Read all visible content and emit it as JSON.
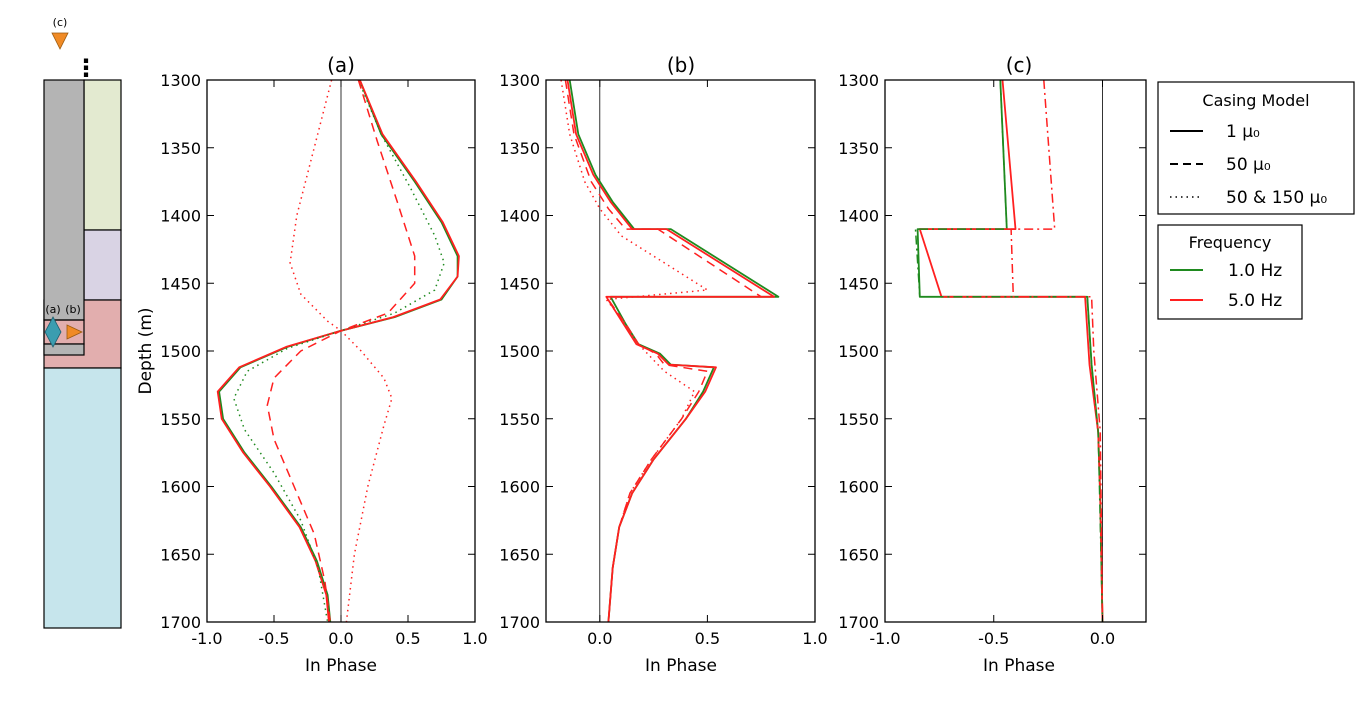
{
  "colors": {
    "green": "#1f8a1f",
    "red": "#ff2020",
    "layer_green": "#e3ead0",
    "layer_purple": "#d9d3e4",
    "layer_pink": "#e2aeae",
    "layer_blue": "#c6e5ec",
    "casing_gray": "#b4b4b4",
    "marker_orange": "#f08a25",
    "marker_teal": "#3b9db0"
  },
  "schematic": {
    "label_c": "(c)",
    "label_a": "(a)",
    "label_b": "(b)",
    "ellipsis": "⋮"
  },
  "legend_model": {
    "title": "Casing Model",
    "entries": [
      {
        "label": "1 μ₀",
        "style": "solid"
      },
      {
        "label": "50 μ₀",
        "style": "dashed"
      },
      {
        "label": "50 & 150 μ₀",
        "style": "dotted"
      }
    ]
  },
  "legend_freq": {
    "title": "Frequency",
    "entries": [
      {
        "label": "1.0 Hz",
        "color": "green"
      },
      {
        "label": "5.0 Hz",
        "color": "red"
      }
    ]
  },
  "chart_data": [
    {
      "type": "line",
      "title": "(a)",
      "xlabel": "In Phase",
      "ylabel": "Depth (m)",
      "xlim": [
        -1.0,
        1.0
      ],
      "ylim": [
        1700,
        1300
      ],
      "xticks": [
        -1.0,
        -0.5,
        0.0,
        0.5,
        1.0
      ],
      "xtick_labels": [
        "-1.0",
        "-0.5",
        "0.0",
        "0.5",
        "1.0"
      ],
      "yticks": [
        1300,
        1350,
        1400,
        1450,
        1500,
        1550,
        1600,
        1650,
        1700
      ],
      "zero_line": 0.0,
      "series": [
        {
          "name": "1 μ₀, 1.0 Hz",
          "color": "green",
          "style": "solid",
          "points": [
            [
              0.14,
              1300
            ],
            [
              0.3,
              1340
            ],
            [
              0.55,
              1375
            ],
            [
              0.75,
              1405
            ],
            [
              0.87,
              1430
            ],
            [
              0.87,
              1445
            ],
            [
              0.75,
              1462
            ],
            [
              0.4,
              1475
            ],
            [
              0.0,
              1485
            ],
            [
              -0.4,
              1497
            ],
            [
              -0.75,
              1512
            ],
            [
              -0.91,
              1530
            ],
            [
              -0.88,
              1550
            ],
            [
              -0.72,
              1575
            ],
            [
              -0.52,
              1600
            ],
            [
              -0.3,
              1630
            ],
            [
              -0.18,
              1655
            ],
            [
              -0.1,
              1680
            ],
            [
              -0.08,
              1700
            ]
          ]
        },
        {
          "name": "1 μ₀, 5.0 Hz",
          "color": "red",
          "style": "solid",
          "points": [
            [
              0.14,
              1300
            ],
            [
              0.31,
              1340
            ],
            [
              0.56,
              1375
            ],
            [
              0.76,
              1405
            ],
            [
              0.88,
              1430
            ],
            [
              0.87,
              1445
            ],
            [
              0.74,
              1462
            ],
            [
              0.39,
              1475
            ],
            [
              0.0,
              1485
            ],
            [
              -0.41,
              1497
            ],
            [
              -0.76,
              1512
            ],
            [
              -0.92,
              1530
            ],
            [
              -0.89,
              1550
            ],
            [
              -0.73,
              1575
            ],
            [
              -0.53,
              1600
            ],
            [
              -0.31,
              1630
            ],
            [
              -0.19,
              1655
            ],
            [
              -0.11,
              1680
            ],
            [
              -0.09,
              1700
            ]
          ]
        },
        {
          "name": "50 μ₀, 1.0 Hz",
          "color": "green",
          "style": "dotted",
          "points": [
            [
              0.13,
              1300
            ],
            [
              0.3,
              1340
            ],
            [
              0.52,
              1380
            ],
            [
              0.7,
              1415
            ],
            [
              0.77,
              1435
            ],
            [
              0.7,
              1455
            ],
            [
              0.4,
              1472
            ],
            [
              0.0,
              1485
            ],
            [
              -0.4,
              1498
            ],
            [
              -0.7,
              1515
            ],
            [
              -0.8,
              1535
            ],
            [
              -0.72,
              1558
            ],
            [
              -0.5,
              1590
            ],
            [
              -0.3,
              1625
            ],
            [
              -0.17,
              1660
            ],
            [
              -0.1,
              1700
            ]
          ]
        },
        {
          "name": "50 μ₀, 5.0 Hz",
          "color": "red",
          "style": "dashed",
          "points": [
            [
              0.13,
              1300
            ],
            [
              0.27,
              1345
            ],
            [
              0.42,
              1390
            ],
            [
              0.55,
              1430
            ],
            [
              0.55,
              1450
            ],
            [
              0.35,
              1472
            ],
            [
              0.0,
              1485
            ],
            [
              -0.3,
              1500
            ],
            [
              -0.5,
              1520
            ],
            [
              -0.55,
              1540
            ],
            [
              -0.5,
              1565
            ],
            [
              -0.35,
              1600
            ],
            [
              -0.2,
              1635
            ],
            [
              -0.12,
              1670
            ],
            [
              -0.08,
              1700
            ]
          ]
        },
        {
          "name": "50 & 150 μ₀, 5.0 Hz",
          "color": "red",
          "style": "dotted",
          "points": [
            [
              -0.07,
              1300
            ],
            [
              -0.2,
              1350
            ],
            [
              -0.33,
              1400
            ],
            [
              -0.38,
              1435
            ],
            [
              -0.3,
              1458
            ],
            [
              -0.1,
              1478
            ],
            [
              0.0,
              1485
            ],
            [
              0.15,
              1500
            ],
            [
              0.32,
              1520
            ],
            [
              0.38,
              1535
            ],
            [
              0.32,
              1555
            ],
            [
              0.2,
              1600
            ],
            [
              0.1,
              1650
            ],
            [
              0.04,
              1700
            ]
          ]
        }
      ]
    },
    {
      "type": "line",
      "title": "(b)",
      "xlabel": "In Phase",
      "ylabel": "",
      "xlim": [
        -0.25,
        1.0
      ],
      "ylim": [
        1700,
        1300
      ],
      "xticks": [
        0.0,
        0.5,
        1.0
      ],
      "xtick_labels": [
        "0.0",
        "0.5",
        "1.0"
      ],
      "yticks": [
        1300,
        1350,
        1400,
        1450,
        1500,
        1550,
        1600,
        1650,
        1700
      ],
      "zero_line": 0.0,
      "series": [
        {
          "name": "1 μ₀, 1.0 Hz",
          "color": "green",
          "style": "solid",
          "points": [
            [
              -0.14,
              1300
            ],
            [
              -0.1,
              1340
            ],
            [
              -0.02,
              1370
            ],
            [
              0.06,
              1390
            ],
            [
              0.16,
              1410
            ],
            [
              0.33,
              1410
            ],
            [
              0.83,
              1460
            ],
            [
              0.05,
              1460
            ],
            [
              0.12,
              1480
            ],
            [
              0.18,
              1495
            ],
            [
              0.28,
              1502
            ],
            [
              0.33,
              1510
            ],
            [
              0.53,
              1512
            ],
            [
              0.48,
              1530
            ],
            [
              0.4,
              1550
            ],
            [
              0.25,
              1580
            ],
            [
              0.15,
              1605
            ],
            [
              0.09,
              1630
            ],
            [
              0.06,
              1660
            ],
            [
              0.04,
              1700
            ]
          ]
        },
        {
          "name": "1 μ₀, 5.0 Hz",
          "color": "red",
          "style": "solid",
          "points": [
            [
              -0.15,
              1300
            ],
            [
              -0.11,
              1340
            ],
            [
              -0.03,
              1370
            ],
            [
              0.05,
              1390
            ],
            [
              0.15,
              1410
            ],
            [
              0.31,
              1410
            ],
            [
              0.81,
              1460
            ],
            [
              0.03,
              1460
            ],
            [
              0.11,
              1480
            ],
            [
              0.17,
              1495
            ],
            [
              0.27,
              1502
            ],
            [
              0.32,
              1510
            ],
            [
              0.54,
              1512
            ],
            [
              0.49,
              1530
            ],
            [
              0.4,
              1550
            ],
            [
              0.25,
              1580
            ],
            [
              0.15,
              1605
            ],
            [
              0.09,
              1630
            ],
            [
              0.06,
              1660
            ],
            [
              0.04,
              1700
            ]
          ]
        },
        {
          "name": "50 μ₀, 5.0 Hz",
          "color": "red",
          "style": "dashed",
          "points": [
            [
              -0.16,
              1300
            ],
            [
              -0.12,
              1340
            ],
            [
              -0.04,
              1375
            ],
            [
              0.04,
              1395
            ],
            [
              0.12,
              1410
            ],
            [
              0.27,
              1410
            ],
            [
              0.75,
              1460
            ],
            [
              0.03,
              1460
            ],
            [
              0.12,
              1480
            ],
            [
              0.18,
              1495
            ],
            [
              0.26,
              1502
            ],
            [
              0.3,
              1510
            ],
            [
              0.5,
              1515
            ],
            [
              0.46,
              1530
            ],
            [
              0.38,
              1550
            ],
            [
              0.24,
              1580
            ],
            [
              0.14,
              1605
            ],
            [
              0.09,
              1630
            ],
            [
              0.06,
              1660
            ],
            [
              0.04,
              1700
            ]
          ]
        },
        {
          "name": "50 & 150 μ₀, 5.0 Hz",
          "color": "red",
          "style": "dotted",
          "points": [
            [
              -0.18,
              1300
            ],
            [
              -0.14,
              1340
            ],
            [
              -0.07,
              1375
            ],
            [
              0.0,
              1395
            ],
            [
              0.1,
              1415
            ],
            [
              0.3,
              1435
            ],
            [
              0.5,
              1455
            ],
            [
              0.03,
              1462
            ],
            [
              0.12,
              1480
            ],
            [
              0.18,
              1495
            ],
            [
              0.24,
              1505
            ],
            [
              0.3,
              1515
            ],
            [
              0.44,
              1530
            ],
            [
              0.38,
              1550
            ],
            [
              0.24,
              1580
            ],
            [
              0.14,
              1605
            ],
            [
              0.09,
              1630
            ],
            [
              0.06,
              1660
            ],
            [
              0.04,
              1700
            ]
          ]
        }
      ]
    },
    {
      "type": "line",
      "title": "(c)",
      "xlabel": "In Phase",
      "ylabel": "",
      "xlim": [
        -1.0,
        0.2
      ],
      "ylim": [
        1700,
        1300
      ],
      "xticks": [
        -1.0,
        -0.5,
        0.0
      ],
      "xtick_labels": [
        "-1.0",
        "-0.5",
        "0.0"
      ],
      "yticks": [
        1300,
        1350,
        1400,
        1450,
        1500,
        1550,
        1600,
        1650,
        1700
      ],
      "zero_line": 0.0,
      "series": [
        {
          "name": "1 μ₀, 1.0 Hz",
          "color": "green",
          "style": "solid",
          "points": [
            [
              -0.47,
              1300
            ],
            [
              -0.44,
              1410
            ],
            [
              -0.85,
              1410
            ],
            [
              -0.84,
              1460
            ],
            [
              -0.07,
              1460
            ],
            [
              -0.05,
              1510
            ],
            [
              -0.05,
              1510
            ],
            [
              -0.02,
              1560
            ],
            [
              -0.01,
              1610
            ],
            [
              0.0,
              1700
            ]
          ]
        },
        {
          "name": "1 μ₀, 5.0 Hz",
          "color": "red",
          "style": "solid",
          "points": [
            [
              -0.46,
              1300
            ],
            [
              -0.4,
              1410
            ],
            [
              -0.84,
              1410
            ],
            [
              -0.74,
              1460
            ],
            [
              -0.08,
              1460
            ],
            [
              -0.06,
              1510
            ],
            [
              -0.06,
              1510
            ],
            [
              -0.02,
              1560
            ],
            [
              -0.01,
              1610
            ],
            [
              0.0,
              1700
            ]
          ]
        },
        {
          "name": "1 μ₀, 1.0 Hz (alt)",
          "color": "green",
          "style": "dashdot",
          "points": [
            [
              -0.47,
              1300
            ],
            [
              -0.44,
              1410
            ],
            [
              -0.86,
              1410
            ],
            [
              -0.84,
              1460
            ],
            [
              -0.07,
              1460
            ],
            [
              -0.05,
              1510
            ],
            [
              -0.02,
              1560
            ],
            [
              0.0,
              1700
            ]
          ]
        },
        {
          "name": "50 μ₀, 5.0 Hz",
          "color": "red",
          "style": "dashdot",
          "points": [
            [
              -0.27,
              1300
            ],
            [
              -0.22,
              1410
            ],
            [
              -0.42,
              1410
            ],
            [
              -0.41,
              1460
            ],
            [
              -0.05,
              1460
            ],
            [
              -0.04,
              1500
            ],
            [
              -0.01,
              1560
            ],
            [
              0.0,
              1700
            ]
          ]
        }
      ]
    }
  ]
}
